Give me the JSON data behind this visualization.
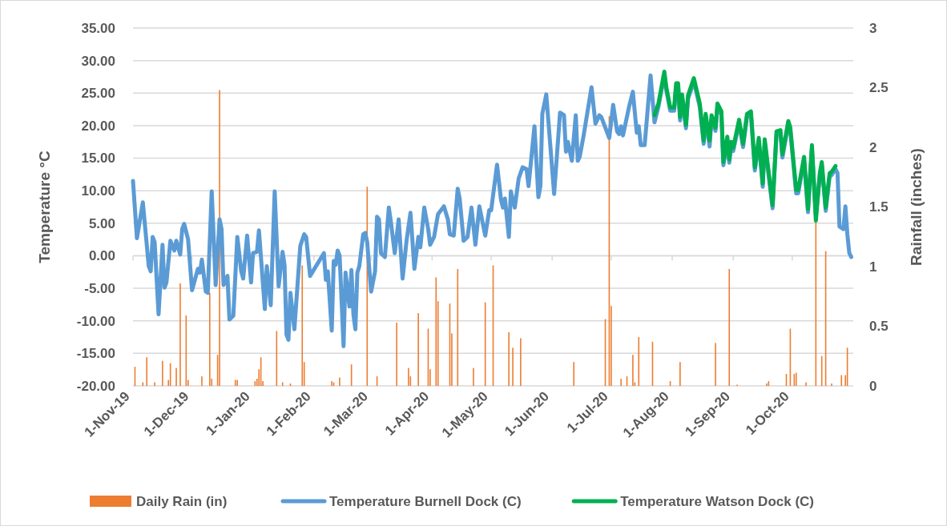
{
  "chart_data": {
    "type": "line",
    "ylabel": "Temperature °C",
    "y2label": "Rainfall (inches)",
    "xlim": [
      "2019-11-01",
      "2020-11-01"
    ],
    "xticks": [
      {
        "value": "2019-11-01",
        "label": "1-Nov-19"
      },
      {
        "value": "2019-12-01",
        "label": "1-Dec-19"
      },
      {
        "value": "2020-01-01",
        "label": "1-Jan-20"
      },
      {
        "value": "2020-02-01",
        "label": "1-Feb-20"
      },
      {
        "value": "2020-03-01",
        "label": "1-Mar-20"
      },
      {
        "value": "2020-04-01",
        "label": "1-Apr-20"
      },
      {
        "value": "2020-05-01",
        "label": "1-May-20"
      },
      {
        "value": "2020-06-01",
        "label": "1-Jun-20"
      },
      {
        "value": "2020-07-01",
        "label": "1-Jul-20"
      },
      {
        "value": "2020-08-01",
        "label": "1-Aug-20"
      },
      {
        "value": "2020-09-01",
        "label": "1-Sep-20"
      },
      {
        "value": "2020-10-01",
        "label": "1-Oct-20"
      }
    ],
    "ylim": [
      -20,
      35
    ],
    "yticks": [
      {
        "value": -20,
        "label": "-20.00"
      },
      {
        "value": -15,
        "label": "-15.00"
      },
      {
        "value": -10,
        "label": "-10.00"
      },
      {
        "value": -5,
        "label": "-5.00"
      },
      {
        "value": 0,
        "label": "0.00"
      },
      {
        "value": 5,
        "label": "5.00"
      },
      {
        "value": 10,
        "label": "10.00"
      },
      {
        "value": 15,
        "label": "15.00"
      },
      {
        "value": 20,
        "label": "20.00"
      },
      {
        "value": 25,
        "label": "25.00"
      },
      {
        "value": 30,
        "label": "30.00"
      },
      {
        "value": 35,
        "label": "35.00"
      }
    ],
    "y2lim": [
      0,
      3
    ],
    "y2ticks": [
      0,
      0.5,
      1,
      1.5,
      2,
      2.5,
      3
    ],
    "grid": "y",
    "legend": "bottom",
    "series": [
      {
        "name": "Daily Rain (in)",
        "type": "bar",
        "axis": "y2",
        "color": "#ed7d31",
        "x": [
          "2019-11-02",
          "2019-11-06",
          "2019-11-08",
          "2019-11-12",
          "2019-11-16",
          "2019-11-19",
          "2019-11-20",
          "2019-11-23",
          "2019-11-25",
          "2019-11-28",
          "2019-11-29",
          "2019-12-06",
          "2019-12-10",
          "2019-12-11",
          "2019-12-14",
          "2019-12-15",
          "2019-12-23",
          "2019-12-24",
          "2020-01-02",
          "2020-01-03",
          "2020-01-04",
          "2020-01-05",
          "2020-01-06",
          "2020-01-13",
          "2020-01-16",
          "2020-01-20",
          "2020-01-26",
          "2020-01-27",
          "2020-02-10",
          "2020-02-11",
          "2020-02-14",
          "2020-02-20",
          "2020-02-28",
          "2020-03-04",
          "2020-03-14",
          "2020-03-20",
          "2020-03-21",
          "2020-03-25",
          "2020-03-30",
          "2020-03-31",
          "2020-04-03",
          "2020-04-04",
          "2020-04-10",
          "2020-04-11",
          "2020-04-14",
          "2020-04-22",
          "2020-04-28",
          "2020-05-02",
          "2020-05-10",
          "2020-05-12",
          "2020-05-16",
          "2020-06-12",
          "2020-06-28",
          "2020-06-30",
          "2020-07-01",
          "2020-07-06",
          "2020-07-09",
          "2020-07-12",
          "2020-07-13",
          "2020-07-15",
          "2020-07-22",
          "2020-07-31",
          "2020-08-05",
          "2020-08-23",
          "2020-08-30",
          "2020-09-03",
          "2020-09-18",
          "2020-09-19",
          "2020-09-28",
          "2020-09-30",
          "2020-10-02",
          "2020-10-03",
          "2020-10-08",
          "2020-10-13",
          "2020-10-16",
          "2020-10-18",
          "2020-10-21",
          "2020-10-26",
          "2020-10-28",
          "2020-10-29"
        ],
        "values": [
          0.16,
          0.03,
          0.24,
          0.03,
          0.21,
          0.05,
          0.19,
          0.15,
          0.86,
          0.59,
          0.05,
          0.08,
          0.78,
          0.06,
          0.26,
          2.48,
          0.05,
          0.05,
          0.04,
          0.06,
          0.14,
          0.24,
          0.04,
          0.46,
          0.03,
          0.02,
          1.01,
          0.2,
          0.04,
          0.03,
          0.07,
          0.18,
          1.67,
          0.08,
          0.53,
          0.15,
          0.08,
          0.61,
          0.48,
          0.14,
          0.91,
          0.71,
          0.69,
          0.44,
          0.98,
          0.15,
          0.7,
          1.01,
          0.45,
          0.32,
          0.4,
          0.2,
          0.56,
          2.26,
          0.67,
          0.06,
          0.08,
          0.26,
          0.03,
          0.41,
          0.37,
          0.04,
          0.2,
          0.36,
          0.98,
          0.01,
          0.02,
          0.04,
          0.1,
          0.48,
          0.1,
          0.11,
          0.03,
          1.37,
          0.25,
          1.13,
          0.02,
          0.09,
          0.09,
          0.32
        ]
      },
      {
        "name": "Temperature Burnell Dock (C)",
        "color": "#5b9bd5",
        "x": [
          "2019-11-01",
          "2019-11-03",
          "2019-11-06",
          "2019-11-09",
          "2019-11-10",
          "2019-11-11",
          "2019-11-12",
          "2019-11-14",
          "2019-11-16",
          "2019-11-17",
          "2019-11-18",
          "2019-11-20",
          "2019-11-22",
          "2019-11-23",
          "2019-11-25",
          "2019-11-26",
          "2019-11-27",
          "2019-11-29",
          "2019-12-01",
          "2019-12-04",
          "2019-12-05",
          "2019-12-06",
          "2019-12-08",
          "2019-12-09",
          "2019-12-11",
          "2019-12-13",
          "2019-12-15",
          "2019-12-16",
          "2019-12-17",
          "2019-12-19",
          "2019-12-20",
          "2019-12-22",
          "2019-12-24",
          "2019-12-26",
          "2019-12-27",
          "2019-12-29",
          "2019-12-31",
          "2020-01-01",
          "2020-01-03",
          "2020-01-04",
          "2020-01-07",
          "2020-01-08",
          "2020-01-10",
          "2020-01-12",
          "2020-01-14",
          "2020-01-16",
          "2020-01-17",
          "2020-01-18",
          "2020-01-19",
          "2020-01-20",
          "2020-01-22",
          "2020-01-25",
          "2020-01-27",
          "2020-01-28",
          "2020-01-30",
          "2020-02-06",
          "2020-02-07",
          "2020-02-08",
          "2020-02-10",
          "2020-02-11",
          "2020-02-12",
          "2020-02-13",
          "2020-02-14",
          "2020-02-16",
          "2020-02-17",
          "2020-02-19",
          "2020-02-20",
          "2020-02-21",
          "2020-02-22",
          "2020-02-23",
          "2020-02-24",
          "2020-02-26",
          "2020-02-27",
          "2020-02-28",
          "2020-03-01",
          "2020-03-03",
          "2020-03-04",
          "2020-03-05",
          "2020-03-06",
          "2020-03-08",
          "2020-03-10",
          "2020-03-11",
          "2020-03-13",
          "2020-03-15",
          "2020-03-17",
          "2020-03-19",
          "2020-03-21",
          "2020-03-23",
          "2020-03-25",
          "2020-03-26",
          "2020-03-28",
          "2020-03-30",
          "2020-03-31",
          "2020-04-02",
          "2020-04-04",
          "2020-04-07",
          "2020-04-09",
          "2020-04-10",
          "2020-04-12",
          "2020-04-14",
          "2020-04-15",
          "2020-04-17",
          "2020-04-19",
          "2020-04-21",
          "2020-04-23",
          "2020-04-25",
          "2020-04-28",
          "2020-04-30",
          "2020-05-01",
          "2020-05-04",
          "2020-05-06",
          "2020-05-07",
          "2020-05-08",
          "2020-05-10",
          "2020-05-11",
          "2020-05-13",
          "2020-05-15",
          "2020-05-17",
          "2020-05-19",
          "2020-05-20",
          "2020-05-23",
          "2020-05-25",
          "2020-05-26",
          "2020-05-27",
          "2020-05-29",
          "2020-06-02",
          "2020-06-05",
          "2020-06-07",
          "2020-06-08",
          "2020-06-09",
          "2020-06-11",
          "2020-06-13",
          "2020-06-14",
          "2020-06-15",
          "2020-06-17",
          "2020-06-21",
          "2020-06-23",
          "2020-06-25",
          "2020-06-26",
          "2020-06-30",
          "2020-07-02",
          "2020-07-04",
          "2020-07-05",
          "2020-07-06",
          "2020-07-07",
          "2020-07-10",
          "2020-07-12",
          "2020-07-14",
          "2020-07-15",
          "2020-07-16",
          "2020-07-18",
          "2020-07-21",
          "2020-07-23",
          "2020-07-25",
          "2020-07-28",
          "2020-07-29",
          "2020-07-31",
          "2020-08-02",
          "2020-08-03",
          "2020-08-04",
          "2020-08-05",
          "2020-08-06",
          "2020-08-08",
          "2020-08-09",
          "2020-08-12",
          "2020-08-15",
          "2020-08-17",
          "2020-08-18",
          "2020-08-20",
          "2020-08-21",
          "2020-08-23",
          "2020-08-24",
          "2020-08-26",
          "2020-08-27",
          "2020-08-29",
          "2020-08-30",
          "2020-08-31",
          "2020-09-01",
          "2020-09-04",
          "2020-09-06",
          "2020-09-08",
          "2020-09-10",
          "2020-09-12",
          "2020-09-14",
          "2020-09-16",
          "2020-09-17",
          "2020-09-21",
          "2020-09-23",
          "2020-09-25",
          "2020-09-26",
          "2020-09-29",
          "2020-09-30",
          "2020-10-03",
          "2020-10-04",
          "2020-10-07",
          "2020-10-09",
          "2020-10-11",
          "2020-10-13",
          "2020-10-15",
          "2020-10-16",
          "2020-10-18",
          "2020-10-20",
          "2020-10-21",
          "2020-10-23",
          "2020-10-24",
          "2020-10-25",
          "2020-10-27",
          "2020-10-28",
          "2020-10-29",
          "2020-10-30",
          "2020-10-31"
        ],
        "values": [
          11.5,
          2.7,
          8.2,
          -1.6,
          -2.4,
          2.9,
          2.1,
          -9.0,
          1.7,
          -4.9,
          -4.1,
          2.3,
          0.8,
          2.3,
          0.2,
          4.1,
          4.9,
          2.5,
          -5.3,
          -2.0,
          -2.6,
          -0.6,
          -5.5,
          -5.7,
          9.9,
          -4.5,
          5.6,
          4.1,
          -4.5,
          -3.1,
          -9.8,
          -9.2,
          2.9,
          -2.4,
          -3.5,
          3.1,
          -4.1,
          0.4,
          0.6,
          3.9,
          -8.2,
          -1.6,
          -7.6,
          9.9,
          -4.7,
          0.6,
          -1.4,
          -12.1,
          -12.9,
          -5.7,
          -11.3,
          1.5,
          3.3,
          2.9,
          -3.1,
          0.4,
          -3.7,
          -2.4,
          -11.5,
          -0.8,
          -1.4,
          0.8,
          0.0,
          -13.9,
          -2.6,
          -7.8,
          -2.2,
          -9.0,
          -11.3,
          -2.6,
          -1.6,
          3.3,
          3.5,
          2.1,
          -5.5,
          -2.4,
          6.0,
          5.6,
          0.4,
          -0.2,
          7.4,
          5.3,
          0.4,
          5.6,
          -3.5,
          2.3,
          6.6,
          -2.0,
          2.9,
          1.3,
          7.4,
          4.1,
          1.7,
          2.9,
          6.4,
          7.6,
          5.6,
          3.3,
          3.1,
          10.3,
          8.8,
          2.3,
          2.9,
          7.4,
          1.7,
          7.6,
          3.1,
          7.0,
          7.0,
          14.0,
          8.6,
          7.4,
          8.8,
          2.9,
          9.9,
          7.4,
          11.9,
          13.6,
          13.3,
          10.7,
          19.9,
          9.0,
          10.7,
          21.8,
          24.8,
          9.5,
          22.0,
          21.6,
          16.0,
          17.5,
          14.6,
          21.6,
          14.6,
          15.2,
          18.5,
          25.9,
          20.3,
          21.6,
          21.3,
          18.1,
          23.2,
          19.1,
          18.7,
          19.9,
          18.5,
          22.8,
          25.2,
          18.9,
          19.9,
          17.0,
          17.0,
          27.7,
          20.5,
          22.9,
          27.8,
          25.4,
          22.3,
          22.3,
          26.0,
          26.0,
          20.8,
          24.3,
          19.6,
          24.1,
          26.8,
          22.9,
          17.2,
          21.3,
          16.8,
          21.1,
          19.2,
          22.9,
          21.7,
          13.9,
          17.8,
          14.3,
          17.0,
          16.1,
          20.4,
          16.7,
          21.3,
          21.7,
          13.1,
          17.6,
          10.6,
          17.4,
          7.3,
          18.6,
          18.8,
          15.1,
          20.2,
          19.2,
          9.6,
          9.6,
          14.7,
          6.7,
          16.5,
          6.2,
          12.2,
          13.9,
          6.9,
          12.2,
          12.4,
          13.3,
          12.7,
          4.5,
          4.1,
          7.6,
          3.3,
          0.4,
          -0.2
        ]
      },
      {
        "name": "Temperature Watson Dock (C)",
        "color": "#00b050",
        "x": [
          "2020-07-23",
          "2020-07-25",
          "2020-07-28",
          "2020-07-29",
          "2020-07-31",
          "2020-08-02",
          "2020-08-03",
          "2020-08-04",
          "2020-08-05",
          "2020-08-06",
          "2020-08-08",
          "2020-08-09",
          "2020-08-12",
          "2020-08-15",
          "2020-08-17",
          "2020-08-18",
          "2020-08-20",
          "2020-08-21",
          "2020-08-23",
          "2020-08-24",
          "2020-08-26",
          "2020-08-27",
          "2020-08-29",
          "2020-08-30",
          "2020-08-31",
          "2020-09-01",
          "2020-09-04",
          "2020-09-06",
          "2020-09-08",
          "2020-09-10",
          "2020-09-12",
          "2020-09-14",
          "2020-09-16",
          "2020-09-17",
          "2020-09-21",
          "2020-09-23",
          "2020-09-25",
          "2020-09-26",
          "2020-09-29",
          "2020-09-30",
          "2020-10-03",
          "2020-10-04",
          "2020-10-07",
          "2020-10-09",
          "2020-10-11",
          "2020-10-13",
          "2020-10-15",
          "2020-10-16",
          "2020-10-18",
          "2020-10-20",
          "2020-10-21",
          "2020-10-23"
        ],
        "values": [
          21.6,
          23.4,
          28.3,
          25.9,
          22.8,
          22.8,
          26.5,
          26.5,
          21.3,
          24.8,
          20.1,
          24.6,
          27.3,
          23.4,
          17.7,
          21.8,
          17.7,
          21.6,
          19.7,
          23.4,
          22.2,
          14.4,
          18.3,
          14.8,
          17.5,
          16.6,
          20.9,
          17.2,
          21.8,
          22.2,
          13.6,
          18.1,
          11.1,
          17.9,
          7.8,
          19.1,
          19.3,
          15.6,
          20.7,
          19.7,
          10.1,
          10.1,
          15.2,
          7.2,
          17.0,
          5.4,
          12.7,
          14.4,
          7.4,
          12.7,
          12.9,
          13.8
        ]
      }
    ]
  }
}
